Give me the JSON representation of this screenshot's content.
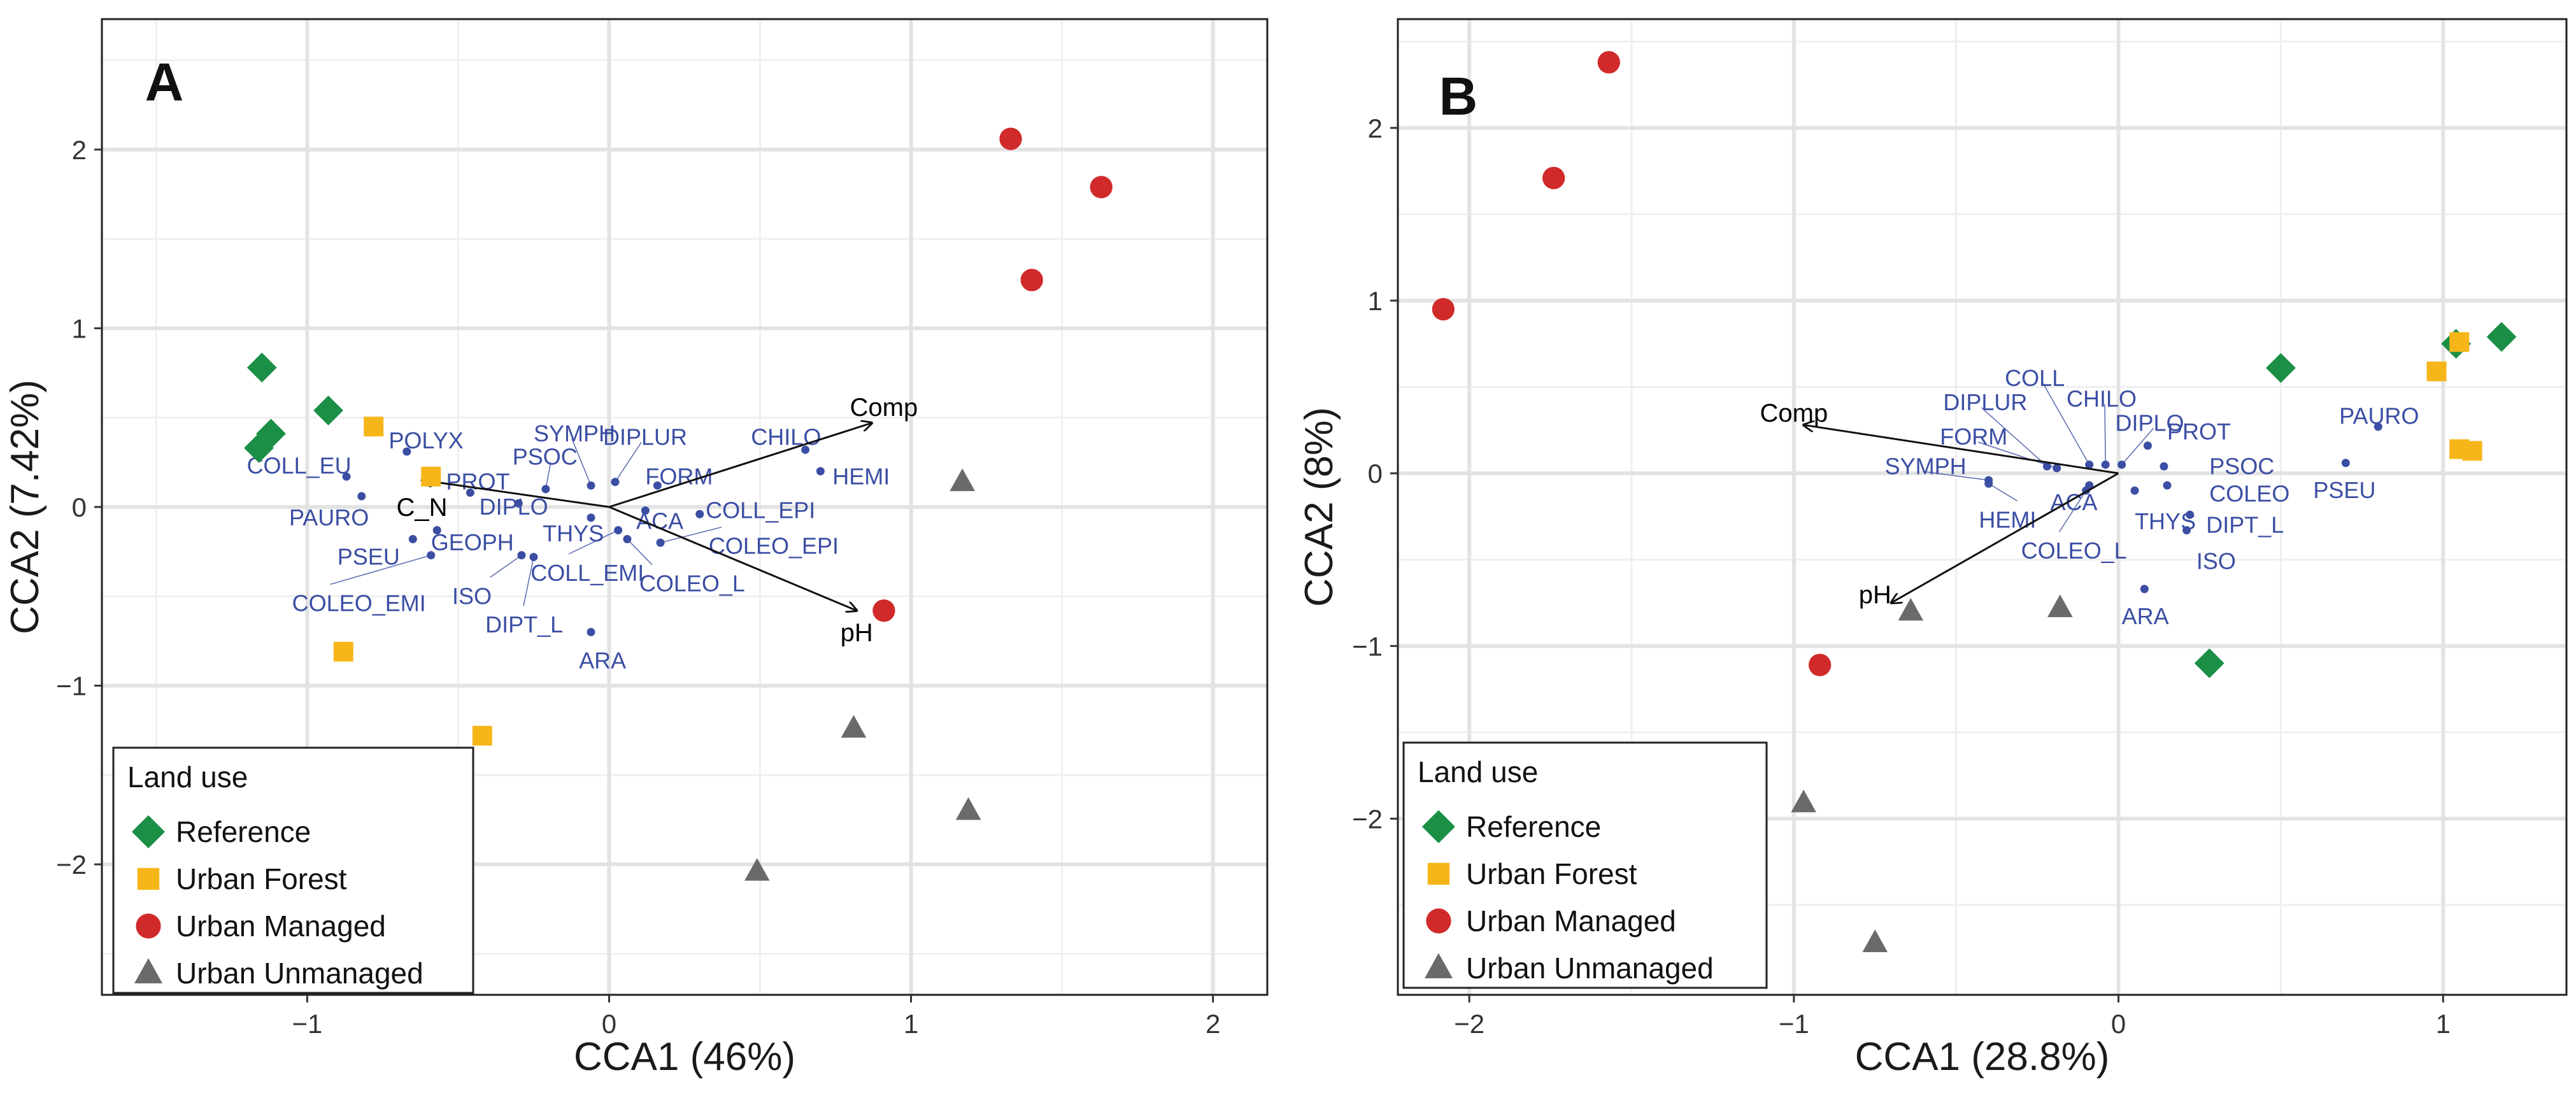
{
  "palette": {
    "Reference": "#1a8f45",
    "Urban Forest": "#f6b619",
    "Urban Managed": "#d12a2a",
    "Urban Unmanaged": "#6a6a6a",
    "taxon": "#3b4ea3",
    "arrow": "#111111",
    "grid": "#e3e3e3"
  },
  "chart_data": [
    {
      "type": "scatter",
      "panel_label": "A",
      "xlabel": "CCA1 (46%)",
      "ylabel": "CCA2 (7.42%)",
      "xlim": [
        -1.68,
        2.18
      ],
      "ylim": [
        -2.73,
        2.73
      ],
      "xticks": [
        {
          "v": -1,
          "label": "−1"
        },
        {
          "v": 0,
          "label": "0"
        },
        {
          "v": 1,
          "label": "1"
        },
        {
          "v": 2,
          "label": "2"
        }
      ],
      "yticks": [
        {
          "v": -2,
          "label": "−2"
        },
        {
          "v": -1,
          "label": "−1"
        },
        {
          "v": 0,
          "label": "0"
        },
        {
          "v": 1,
          "label": "1"
        },
        {
          "v": 2,
          "label": "2"
        }
      ],
      "legend": {
        "title": "Land use",
        "position": "bottom-left",
        "entries": [
          {
            "label": "Reference",
            "shape": "diamond"
          },
          {
            "label": "Urban Forest",
            "shape": "square"
          },
          {
            "label": "Urban Managed",
            "shape": "circle"
          },
          {
            "label": "Urban Unmanaged",
            "shape": "triangle"
          }
        ]
      },
      "sites": [
        {
          "group": "Reference",
          "points": [
            [
              -1.15,
              0.78
            ],
            [
              -1.12,
              0.41
            ],
            [
              -1.16,
              0.33
            ],
            [
              -0.93,
              0.54
            ]
          ]
        },
        {
          "group": "Urban Forest",
          "points": [
            [
              -0.78,
              0.45
            ],
            [
              -0.59,
              0.17
            ],
            [
              -0.88,
              -0.81
            ],
            [
              -0.42,
              -1.28
            ]
          ]
        },
        {
          "group": "Urban Managed",
          "points": [
            [
              1.33,
              2.06
            ],
            [
              1.63,
              1.79
            ],
            [
              1.4,
              1.27
            ],
            [
              0.91,
              -0.58
            ]
          ]
        },
        {
          "group": "Urban Unmanaged",
          "points": [
            [
              1.17,
              0.14
            ],
            [
              0.81,
              -1.24
            ],
            [
              1.19,
              -1.7
            ],
            [
              0.49,
              -2.04
            ]
          ]
        }
      ],
      "arrows": [
        {
          "label": "Comp",
          "x": 0.87,
          "y": 0.47,
          "lx": 0.91,
          "ly": 0.56
        },
        {
          "label": "pH",
          "x": 0.82,
          "y": -0.58,
          "lx": 0.82,
          "ly": -0.7
        },
        {
          "label": "C_N",
          "x": -0.62,
          "y": 0.15,
          "lx": -0.62,
          "ly": 0.0
        }
      ],
      "taxa": [
        {
          "label": "POLYX",
          "x": -0.67,
          "y": 0.31,
          "lx": -0.73,
          "ly": 0.37,
          "leader": false
        },
        {
          "label": "COLL_EU",
          "x": -0.87,
          "y": 0.17,
          "lx": -1.2,
          "ly": 0.23,
          "leader": false
        },
        {
          "label": "PROT",
          "x": -0.46,
          "y": 0.08,
          "lx": -0.54,
          "ly": 0.14,
          "leader": false
        },
        {
          "label": "PAURO",
          "x": -0.82,
          "y": 0.06,
          "lx": -1.06,
          "ly": -0.06,
          "leader": false
        },
        {
          "label": "PSOC",
          "x": -0.21,
          "y": 0.1,
          "lx": -0.32,
          "ly": 0.28,
          "leader": true
        },
        {
          "label": "SYMPH",
          "x": -0.06,
          "y": 0.12,
          "lx": -0.25,
          "ly": 0.41,
          "leader": true
        },
        {
          "label": "DIPLUR",
          "x": 0.02,
          "y": 0.14,
          "lx": -0.02,
          "ly": 0.39,
          "leader": true
        },
        {
          "label": "CHILO",
          "x": 0.65,
          "y": 0.32,
          "lx": 0.47,
          "ly": 0.39,
          "leader": false
        },
        {
          "label": "HEMI",
          "x": 0.7,
          "y": 0.2,
          "lx": 0.74,
          "ly": 0.17,
          "leader": false
        },
        {
          "label": "FORM",
          "x": 0.16,
          "y": 0.12,
          "lx": 0.12,
          "ly": 0.17,
          "leader": false
        },
        {
          "label": "DIPLO",
          "x": -0.3,
          "y": 0.02,
          "lx": -0.43,
          "ly": 0.0,
          "leader": false
        },
        {
          "label": "ACA",
          "x": 0.12,
          "y": -0.02,
          "lx": 0.09,
          "ly": -0.08,
          "leader": false
        },
        {
          "label": "COLL_EPI",
          "x": 0.3,
          "y": -0.04,
          "lx": 0.32,
          "ly": -0.02,
          "leader": false
        },
        {
          "label": "THYS",
          "x": -0.06,
          "y": -0.06,
          "lx": -0.22,
          "ly": -0.15,
          "leader": false
        },
        {
          "label": "COLEO_EPI",
          "x": 0.17,
          "y": -0.2,
          "lx": 0.33,
          "ly": -0.22,
          "leader": true
        },
        {
          "label": "PSEU",
          "x": -0.65,
          "y": -0.18,
          "lx": -0.9,
          "ly": -0.28,
          "leader": false
        },
        {
          "label": "GEOPH",
          "x": -0.57,
          "y": -0.13,
          "lx": -0.59,
          "ly": -0.2,
          "leader": false
        },
        {
          "label": "COLL_EMI",
          "x": 0.03,
          "y": -0.13,
          "lx": -0.26,
          "ly": -0.37,
          "leader": true
        },
        {
          "label": "COLEO_L",
          "x": 0.06,
          "y": -0.18,
          "lx": 0.1,
          "ly": -0.43,
          "leader": true
        },
        {
          "label": "ISO",
          "x": -0.29,
          "y": -0.27,
          "lx": -0.52,
          "ly": -0.5,
          "leader": true
        },
        {
          "label": "COLEO_EMI",
          "x": -0.59,
          "y": -0.27,
          "lx": -1.05,
          "ly": -0.54,
          "leader": true
        },
        {
          "label": "DIPT_L",
          "x": -0.25,
          "y": -0.28,
          "lx": -0.41,
          "ly": -0.66,
          "leader": true
        },
        {
          "label": "ARA",
          "x": -0.06,
          "y": -0.7,
          "lx": -0.1,
          "ly": -0.86,
          "leader": false
        }
      ]
    },
    {
      "type": "scatter",
      "panel_label": "B",
      "xlabel": "CCA1 (28.8%)",
      "ylabel": "CCA2 (8%)",
      "xlim": [
        -2.22,
        1.38
      ],
      "ylim": [
        -3.02,
        2.63
      ],
      "xticks": [
        {
          "v": -2,
          "label": "−2"
        },
        {
          "v": -1,
          "label": "−1"
        },
        {
          "v": 0,
          "label": "0"
        },
        {
          "v": 1,
          "label": "1"
        }
      ],
      "yticks": [
        {
          "v": -2,
          "label": "−2"
        },
        {
          "v": -1,
          "label": "−1"
        },
        {
          "v": 0,
          "label": "0"
        },
        {
          "v": 1,
          "label": "1"
        },
        {
          "v": 2,
          "label": "2"
        }
      ],
      "legend": {
        "title": "Land use",
        "position": "bottom-left",
        "entries": [
          {
            "label": "Reference",
            "shape": "diamond"
          },
          {
            "label": "Urban Forest",
            "shape": "square"
          },
          {
            "label": "Urban Managed",
            "shape": "circle"
          },
          {
            "label": "Urban Unmanaged",
            "shape": "triangle"
          }
        ]
      },
      "sites": [
        {
          "group": "Reference",
          "points": [
            [
              0.5,
              0.61
            ],
            [
              1.04,
              0.75
            ],
            [
              1.18,
              0.79
            ],
            [
              0.28,
              -1.1
            ]
          ]
        },
        {
          "group": "Urban Forest",
          "points": [
            [
              1.05,
              0.76
            ],
            [
              0.98,
              0.59
            ],
            [
              1.05,
              0.14
            ],
            [
              1.09,
              0.13
            ]
          ]
        },
        {
          "group": "Urban Managed",
          "points": [
            [
              -1.57,
              2.38
            ],
            [
              -1.74,
              1.71
            ],
            [
              -2.08,
              0.95
            ],
            [
              -0.92,
              -1.11
            ]
          ]
        },
        {
          "group": "Urban Unmanaged",
          "points": [
            [
              -0.64,
              -0.8
            ],
            [
              -0.18,
              -0.78
            ],
            [
              -0.97,
              -1.91
            ],
            [
              -0.75,
              -2.72
            ]
          ]
        }
      ],
      "arrows": [
        {
          "label": "Comp",
          "x": -0.97,
          "y": 0.28,
          "lx": -1.0,
          "ly": 0.35
        },
        {
          "label": "pH",
          "x": -0.7,
          "y": -0.75,
          "lx": -0.75,
          "ly": -0.7
        }
      ],
      "taxa": [
        {
          "label": "COLL",
          "x": -0.09,
          "y": 0.05,
          "lx": -0.35,
          "ly": 0.55,
          "leader": true
        },
        {
          "label": "DIPLUR",
          "x": -0.22,
          "y": 0.04,
          "lx": -0.54,
          "ly": 0.41,
          "leader": true
        },
        {
          "label": "CHILO",
          "x": -0.04,
          "y": 0.05,
          "lx": -0.16,
          "ly": 0.43,
          "leader": true
        },
        {
          "label": "DIPLO",
          "x": 0.01,
          "y": 0.05,
          "lx": -0.01,
          "ly": 0.29,
          "leader": true
        },
        {
          "label": "PROT",
          "x": 0.09,
          "y": 0.16,
          "lx": 0.15,
          "ly": 0.24,
          "leader": false
        },
        {
          "label": "FORM",
          "x": -0.19,
          "y": 0.03,
          "lx": -0.55,
          "ly": 0.21,
          "leader": true
        },
        {
          "label": "SYMPH",
          "x": -0.4,
          "y": -0.04,
          "lx": -0.72,
          "ly": 0.04,
          "leader": true
        },
        {
          "label": "PSOC",
          "x": 0.14,
          "y": 0.04,
          "lx": 0.28,
          "ly": 0.04,
          "leader": false
        },
        {
          "label": "COLEO",
          "x": 0.15,
          "y": -0.07,
          "lx": 0.28,
          "ly": -0.12,
          "leader": false
        },
        {
          "label": "ACA",
          "x": -0.09,
          "y": -0.07,
          "lx": -0.21,
          "ly": -0.17,
          "leader": false
        },
        {
          "label": "HEMI",
          "x": -0.4,
          "y": -0.06,
          "lx": -0.43,
          "ly": -0.27,
          "leader": true
        },
        {
          "label": "THYS",
          "x": 0.05,
          "y": -0.1,
          "lx": 0.05,
          "ly": -0.28,
          "leader": false
        },
        {
          "label": "DIPT_L",
          "x": 0.22,
          "y": -0.24,
          "lx": 0.27,
          "ly": -0.3,
          "leader": false
        },
        {
          "label": "COLEO_L",
          "x": -0.1,
          "y": -0.1,
          "lx": -0.3,
          "ly": -0.45,
          "leader": true
        },
        {
          "label": "ISO",
          "x": 0.21,
          "y": -0.33,
          "lx": 0.24,
          "ly": -0.51,
          "leader": false
        },
        {
          "label": "ARA",
          "x": 0.08,
          "y": -0.67,
          "lx": 0.01,
          "ly": -0.83,
          "leader": false
        },
        {
          "label": "PAURO",
          "x": 0.8,
          "y": 0.27,
          "lx": 0.68,
          "ly": 0.33,
          "leader": false
        },
        {
          "label": "PSEU",
          "x": 0.7,
          "y": 0.06,
          "lx": 0.6,
          "ly": -0.1,
          "leader": false
        }
      ]
    }
  ]
}
